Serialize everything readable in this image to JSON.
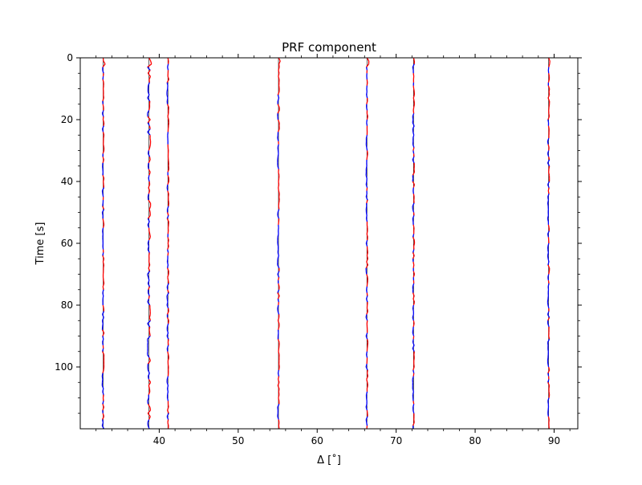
{
  "chart_data": {
    "type": "line",
    "title": "PRF component",
    "xlabel": "Δ [˚]",
    "ylabel": "Time [s]",
    "xlim": [
      30,
      93
    ],
    "ylim": [
      0,
      120
    ],
    "y_inverted": true,
    "x_ticks": [
      40,
      50,
      60,
      70,
      80,
      90
    ],
    "x_tick_labels": [
      "40",
      "50",
      "60",
      "70",
      "80",
      "90"
    ],
    "y_ticks": [
      0,
      20,
      40,
      60,
      80,
      100
    ],
    "y_tick_labels": [
      "0",
      "20",
      "40",
      "60",
      "80",
      "100"
    ],
    "grid": false,
    "legend": "none",
    "colors": {
      "positive": "#ff0000",
      "negative": "#0000ff",
      "baseline": "#000000"
    },
    "traces": [
      {
        "distance": 32.9
      },
      {
        "distance": 38.7
      },
      {
        "distance": 41.1
      },
      {
        "distance": 55.1
      },
      {
        "distance": 66.3
      },
      {
        "distance": 72.2
      },
      {
        "distance": 89.3
      }
    ]
  }
}
